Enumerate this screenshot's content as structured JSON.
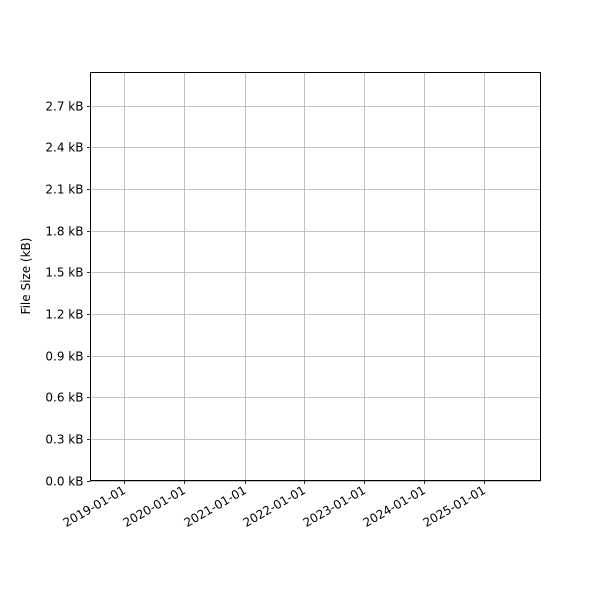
{
  "chart_data": {
    "type": "line",
    "title": "",
    "xlabel": "",
    "ylabel": "File Size (kB)",
    "x_tick_labels": [
      "2019-01-01",
      "2020-01-01",
      "2021-01-01",
      "2022-01-01",
      "2023-01-01",
      "2024-01-01",
      "2025-01-01"
    ],
    "y_ticks": [
      0.0,
      0.3,
      0.6,
      0.9,
      1.2,
      1.5,
      1.8,
      2.1,
      2.4,
      2.7
    ],
    "y_tick_labels": [
      "0.0 kB",
      "0.3 kB",
      "0.6 kB",
      "0.9 kB",
      "1.2 kB",
      "1.5 kB",
      "1.8 kB",
      "2.1 kB",
      "2.4 kB",
      "2.7 kB"
    ],
    "xlim": [
      "2018-06-08",
      "2025-12-08"
    ],
    "ylim": [
      0,
      2.94
    ],
    "grid": true,
    "grid_color": "#b0b0b0",
    "series": []
  }
}
